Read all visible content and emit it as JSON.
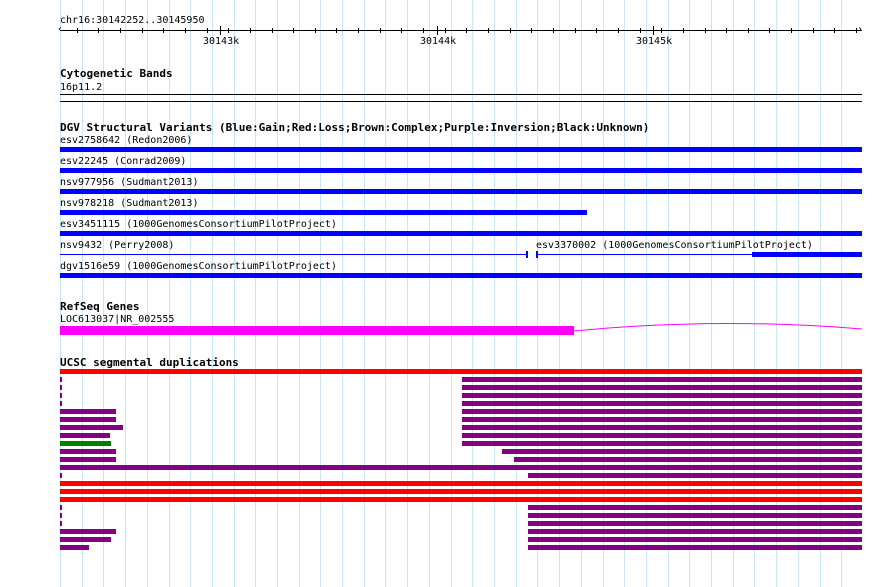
{
  "ruler": {
    "location": "chr16:30142252..30145950",
    "ticks": [
      "30143k",
      "30144k",
      "30145k"
    ],
    "left_arrow": "‹",
    "right_arrow": "›"
  },
  "cytoband": {
    "title": "Cytogenetic Bands",
    "band": "16p11.2"
  },
  "dgv": {
    "title": "DGV Structural Variants (Blue:Gain;Red:Loss;Brown:Complex;Purple:Inversion;Black:Unknown)",
    "variants": [
      {
        "label": "esv2758642 (Redon2006)",
        "color": "#0000ff"
      },
      {
        "label": "esv22245 (Conrad2009)",
        "color": "#0000ff"
      },
      {
        "label": "nsv977956 (Sudmant2013)",
        "color": "#0000ff"
      },
      {
        "label": "nsv978218 (Sudmant2013)",
        "color": "#0000ff"
      },
      {
        "label": "esv3451115 (1000GenomesConsortiumPilotProject)",
        "color": "#0000ff"
      },
      {
        "label": "nsv9432 (Perry2008)",
        "color": "#0000ff"
      },
      {
        "label": "esv3370002 (1000GenomesConsortiumPilotProject)",
        "color": "#0000ff"
      },
      {
        "label": "dgv1516e59 (1000GenomesConsortiumPilotProject)",
        "color": "#0000ff"
      }
    ]
  },
  "refseq": {
    "title": "RefSeq Genes",
    "gene": "LOC613037|NR_002555",
    "color": "#ff00ff"
  },
  "segdup": {
    "title": "UCSC segmental duplications",
    "colors": {
      "red": "#ff0000",
      "purple": "#800080",
      "green": "#008000"
    }
  }
}
